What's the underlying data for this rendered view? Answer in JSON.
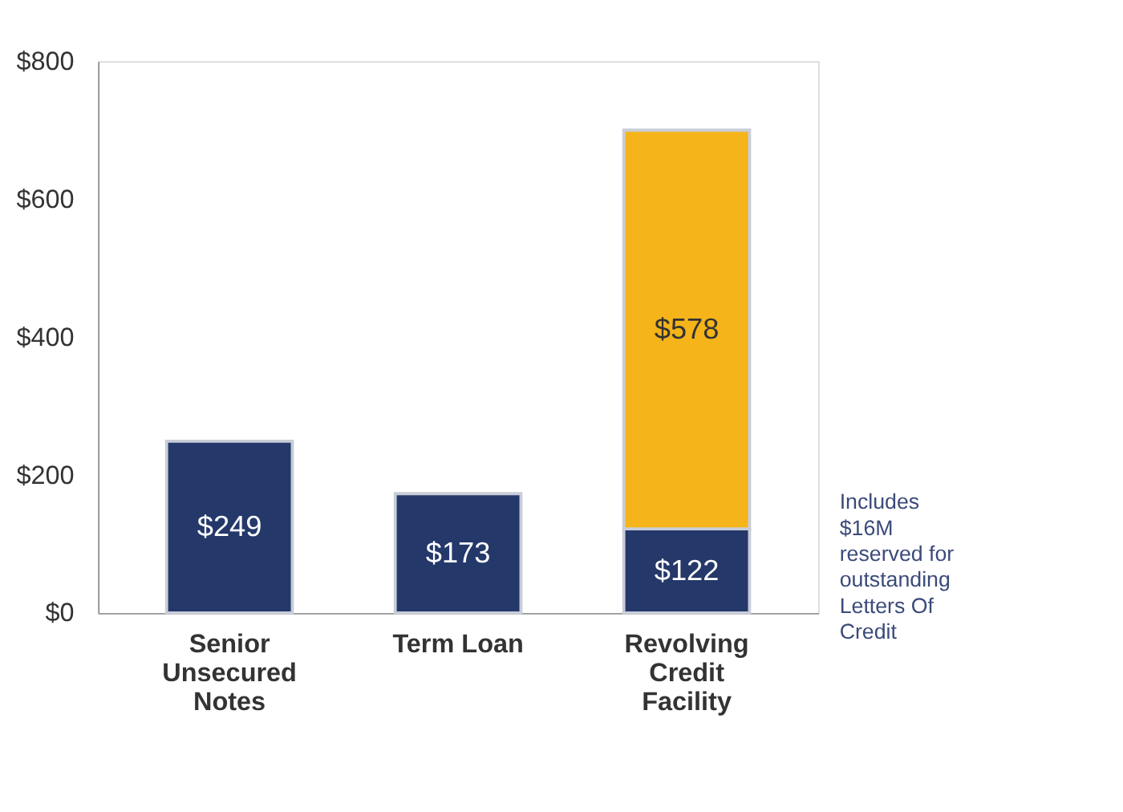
{
  "chart_data": {
    "type": "bar",
    "stacked": true,
    "categories": [
      "Senior Unsecured Notes",
      "Term Loan",
      "Revolving Credit Facility"
    ],
    "series": [
      {
        "color": "#24386a",
        "values": [
          249,
          173,
          122
        ],
        "value_labels": [
          "$249",
          "$173",
          "$122"
        ]
      },
      {
        "color": "#f4b41a",
        "values": [
          null,
          null,
          578
        ],
        "value_labels": [
          null,
          null,
          "$578"
        ]
      }
    ],
    "ylim": [
      0,
      800
    ],
    "yticks": [
      {
        "value": 0,
        "label": "$0"
      },
      {
        "value": 200,
        "label": "$200"
      },
      {
        "value": 400,
        "label": "$400"
      },
      {
        "value": 600,
        "label": "$600"
      },
      {
        "value": 800,
        "label": "$800"
      }
    ],
    "grid": false,
    "annotations": [
      "Includes $16M reserved for outstanding Letters Of Credit"
    ]
  }
}
